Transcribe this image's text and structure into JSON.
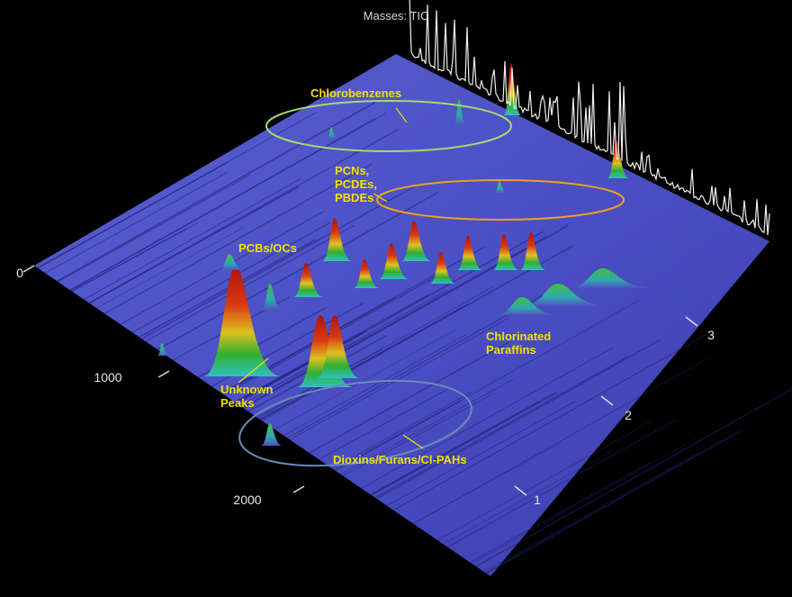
{
  "title": "Masses: TIC",
  "first_dimension_axis": {
    "ticks": [
      "0",
      "1000",
      "2000"
    ]
  },
  "second_dimension_axis": {
    "ticks": [
      "1",
      "2",
      "3"
    ]
  },
  "annotations": [
    {
      "lines": [
        "Chlorobenzenes"
      ]
    },
    {
      "lines": [
        "PCNs,",
        "PCDEs,",
        "PBDEs"
      ]
    },
    {
      "lines": [
        "PCBs/OCs"
      ]
    },
    {
      "lines": [
        "Unknown",
        "Peaks"
      ]
    },
    {
      "lines": [
        "Chlorinated",
        "Paraffins"
      ]
    },
    {
      "lines": [
        "Dioxins/Furans/Cl-PAHs"
      ]
    }
  ]
}
